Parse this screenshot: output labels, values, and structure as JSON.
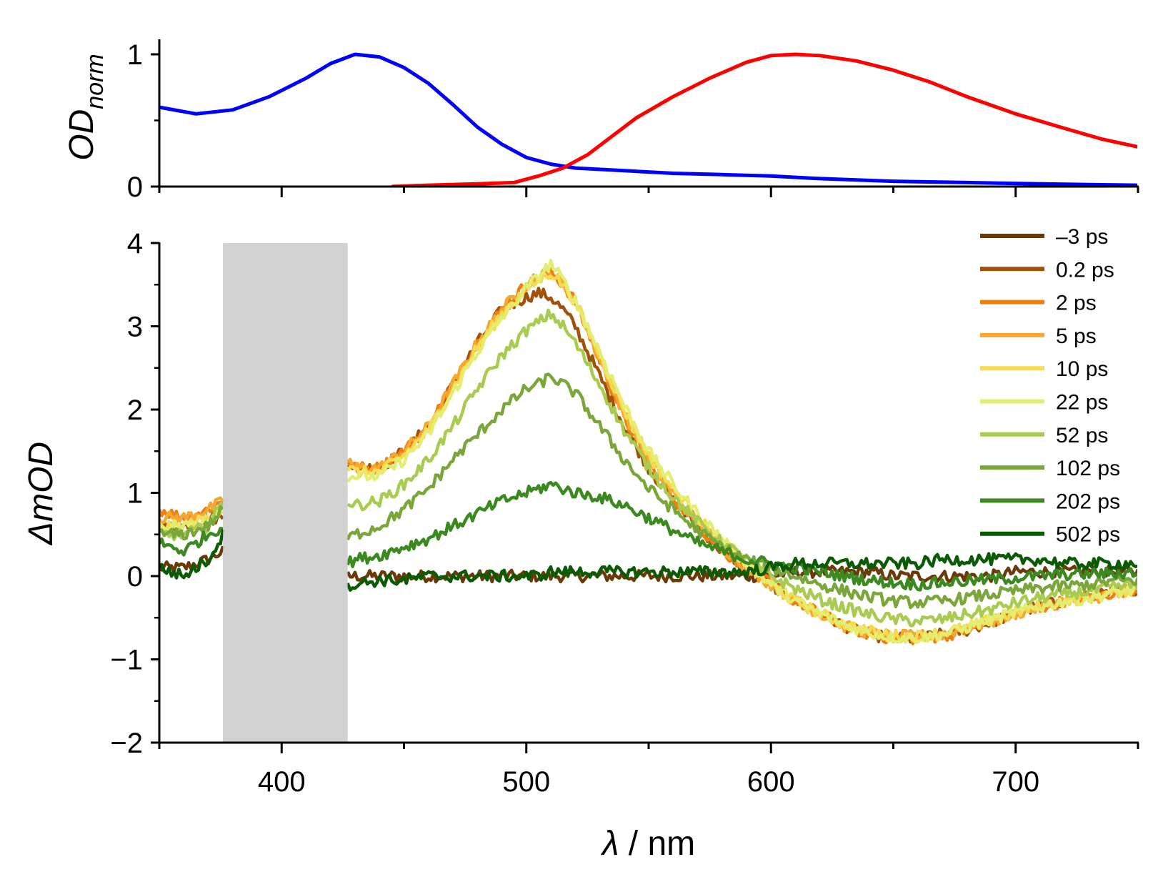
{
  "chart_data": [
    {
      "type": "line",
      "panel": "top",
      "ylabel_main": "OD",
      "ylabel_sub": "norm",
      "xlim": [
        350,
        750
      ],
      "ylim": [
        0,
        1.1
      ],
      "yticks": [
        0,
        1
      ],
      "ytick_labels": [
        "0",
        "1"
      ],
      "series": [
        {
          "name": "absorption-blue",
          "color": "#0000ff",
          "x": [
            350,
            365,
            380,
            395,
            410,
            420,
            430,
            440,
            450,
            460,
            470,
            480,
            490,
            500,
            510,
            520,
            540,
            560,
            580,
            600,
            620,
            650,
            680,
            710,
            750
          ],
          "y": [
            0.6,
            0.55,
            0.58,
            0.68,
            0.82,
            0.93,
            1.0,
            0.98,
            0.9,
            0.78,
            0.62,
            0.45,
            0.32,
            0.22,
            0.17,
            0.14,
            0.12,
            0.1,
            0.09,
            0.08,
            0.06,
            0.04,
            0.03,
            0.02,
            0.01
          ]
        },
        {
          "name": "absorption-red",
          "color": "#ff0000",
          "x": [
            445,
            460,
            480,
            495,
            505,
            515,
            525,
            535,
            545,
            560,
            575,
            590,
            600,
            610,
            620,
            635,
            650,
            665,
            680,
            700,
            720,
            735,
            750
          ],
          "y": [
            0.0,
            0.01,
            0.02,
            0.03,
            0.08,
            0.14,
            0.24,
            0.38,
            0.52,
            0.68,
            0.82,
            0.94,
            0.99,
            1.0,
            0.99,
            0.95,
            0.88,
            0.79,
            0.68,
            0.55,
            0.44,
            0.36,
            0.3
          ]
        }
      ]
    },
    {
      "type": "line",
      "panel": "bottom",
      "ylabel": "ΔmOD",
      "xlabel_symbol": "λ",
      "xlabel_unit": " / nm",
      "xlim": [
        350,
        750
      ],
      "ylim": [
        -2,
        4
      ],
      "xticks": [
        400,
        500,
        600,
        700
      ],
      "xtick_labels": [
        "400",
        "500",
        "600",
        "700"
      ],
      "yticks": [
        -2,
        -1,
        0,
        1,
        2,
        3,
        4
      ],
      "ytick_labels": [
        "−2",
        "−1",
        "0",
        "1",
        "2",
        "3",
        "4"
      ],
      "shaded_region": [
        376,
        427
      ],
      "legend_position": "top-right",
      "x": [
        350,
        360,
        370,
        376,
        427,
        430,
        440,
        450,
        460,
        470,
        480,
        490,
        500,
        505,
        510,
        515,
        520,
        530,
        540,
        550,
        560,
        570,
        580,
        590,
        600,
        610,
        620,
        630,
        640,
        650,
        660,
        670,
        680,
        690,
        700,
        710,
        720,
        730,
        740,
        750
      ],
      "series": [
        {
          "name": "–3 ps",
          "color": "#6b3a08",
          "values": [
            0.1,
            0.1,
            0.2,
            0.3,
            0.0,
            0.0,
            0.0,
            0.0,
            0.0,
            0.0,
            0.0,
            0.0,
            0.0,
            0.0,
            0.0,
            0.0,
            0.0,
            0.0,
            0.0,
            0.0,
            0.0,
            0.0,
            0.0,
            0.0,
            0.0,
            0.05,
            0.05,
            0.05,
            0.05,
            0.0,
            0.0,
            0.0,
            0.0,
            0.0,
            0.05,
            0.05,
            0.05,
            0.05,
            0.05,
            0.05
          ]
        },
        {
          "name": "0.2 ps",
          "color": "#a0520a",
          "values": [
            0.6,
            0.6,
            0.7,
            0.7,
            1.4,
            1.3,
            1.3,
            1.5,
            1.8,
            2.3,
            2.8,
            3.2,
            3.35,
            3.4,
            3.35,
            3.2,
            3.0,
            2.4,
            1.8,
            1.3,
            0.9,
            0.6,
            0.3,
            0.1,
            -0.1,
            -0.3,
            -0.45,
            -0.6,
            -0.7,
            -0.75,
            -0.75,
            -0.7,
            -0.65,
            -0.55,
            -0.45,
            -0.35,
            -0.3,
            -0.25,
            -0.2,
            -0.15
          ]
        },
        {
          "name": "2 ps",
          "color": "#f07f10",
          "values": [
            0.8,
            0.7,
            0.8,
            0.9,
            1.4,
            1.3,
            1.3,
            1.5,
            1.8,
            2.3,
            2.8,
            3.2,
            3.5,
            3.6,
            3.65,
            3.5,
            3.3,
            2.6,
            1.9,
            1.35,
            0.95,
            0.6,
            0.3,
            0.1,
            -0.1,
            -0.3,
            -0.45,
            -0.6,
            -0.7,
            -0.75,
            -0.75,
            -0.72,
            -0.65,
            -0.55,
            -0.45,
            -0.38,
            -0.3,
            -0.25,
            -0.2,
            -0.15
          ]
        },
        {
          "name": "5 ps",
          "color": "#f5a830",
          "values": [
            0.7,
            0.7,
            0.8,
            0.9,
            1.4,
            1.3,
            1.3,
            1.5,
            1.8,
            2.3,
            2.8,
            3.2,
            3.5,
            3.6,
            3.65,
            3.5,
            3.3,
            2.6,
            1.95,
            1.4,
            1.0,
            0.65,
            0.35,
            0.1,
            -0.1,
            -0.3,
            -0.45,
            -0.6,
            -0.68,
            -0.72,
            -0.72,
            -0.7,
            -0.62,
            -0.55,
            -0.45,
            -0.38,
            -0.3,
            -0.28,
            -0.2,
            -0.15
          ]
        },
        {
          "name": "10 ps",
          "color": "#f6da50",
          "values": [
            0.6,
            0.6,
            0.7,
            0.8,
            1.3,
            1.25,
            1.25,
            1.45,
            1.75,
            2.25,
            2.75,
            3.15,
            3.45,
            3.55,
            3.65,
            3.5,
            3.3,
            2.65,
            2.0,
            1.45,
            1.05,
            0.7,
            0.4,
            0.15,
            -0.1,
            -0.3,
            -0.45,
            -0.58,
            -0.66,
            -0.72,
            -0.72,
            -0.68,
            -0.62,
            -0.52,
            -0.44,
            -0.36,
            -0.3,
            -0.26,
            -0.2,
            -0.15
          ]
        },
        {
          "name": "22 ps",
          "color": "#e3ee70",
          "values": [
            0.6,
            0.6,
            0.7,
            0.8,
            1.2,
            1.2,
            1.2,
            1.4,
            1.7,
            2.2,
            2.7,
            3.1,
            3.45,
            3.6,
            3.75,
            3.55,
            3.3,
            2.7,
            2.05,
            1.5,
            1.1,
            0.75,
            0.45,
            0.15,
            -0.1,
            -0.3,
            -0.45,
            -0.58,
            -0.68,
            -0.74,
            -0.74,
            -0.7,
            -0.62,
            -0.52,
            -0.44,
            -0.36,
            -0.3,
            -0.26,
            -0.2,
            -0.15
          ]
        },
        {
          "name": "52 ps",
          "color": "#a9cb50",
          "values": [
            0.5,
            0.5,
            0.6,
            0.9,
            0.9,
            0.85,
            0.9,
            1.1,
            1.4,
            1.8,
            2.25,
            2.65,
            2.95,
            3.05,
            3.15,
            3.0,
            2.8,
            2.3,
            1.75,
            1.3,
            0.95,
            0.65,
            0.4,
            0.2,
            0.0,
            -0.15,
            -0.28,
            -0.38,
            -0.46,
            -0.52,
            -0.54,
            -0.52,
            -0.46,
            -0.4,
            -0.32,
            -0.26,
            -0.22,
            -0.18,
            -0.14,
            -0.1
          ]
        },
        {
          "name": "102 ps",
          "color": "#7aa63a",
          "values": [
            0.5,
            0.5,
            0.6,
            0.8,
            0.45,
            0.5,
            0.6,
            0.8,
            1.05,
            1.4,
            1.7,
            2.0,
            2.25,
            2.3,
            2.4,
            2.3,
            2.2,
            1.8,
            1.4,
            1.05,
            0.8,
            0.55,
            0.35,
            0.2,
            0.1,
            0.0,
            -0.1,
            -0.18,
            -0.25,
            -0.3,
            -0.32,
            -0.3,
            -0.26,
            -0.22,
            -0.18,
            -0.14,
            -0.12,
            -0.1,
            -0.06,
            -0.05
          ]
        },
        {
          "name": "202 ps",
          "color": "#3a8a1f",
          "values": [
            0.4,
            0.3,
            0.5,
            0.6,
            0.15,
            0.2,
            0.25,
            0.35,
            0.45,
            0.6,
            0.75,
            0.9,
            1.0,
            1.05,
            1.1,
            1.05,
            1.0,
            0.95,
            0.85,
            0.7,
            0.55,
            0.4,
            0.3,
            0.2,
            0.15,
            0.1,
            0.05,
            0.0,
            -0.05,
            -0.08,
            -0.1,
            -0.08,
            -0.06,
            -0.04,
            -0.02,
            0.0,
            0.02,
            0.03,
            0.03,
            0.05
          ]
        },
        {
          "name": "502 ps",
          "color": "#0b5b05",
          "values": [
            0.1,
            0.0,
            0.2,
            0.5,
            -0.1,
            -0.1,
            -0.05,
            -0.05,
            0.0,
            0.0,
            0.0,
            0.0,
            0.0,
            0.0,
            0.05,
            0.05,
            0.05,
            0.05,
            0.05,
            0.05,
            0.05,
            0.05,
            0.05,
            0.05,
            0.1,
            0.15,
            0.15,
            0.15,
            0.15,
            0.15,
            0.15,
            0.2,
            0.2,
            0.2,
            0.2,
            0.2,
            0.15,
            0.15,
            0.15,
            0.15
          ]
        }
      ]
    }
  ]
}
